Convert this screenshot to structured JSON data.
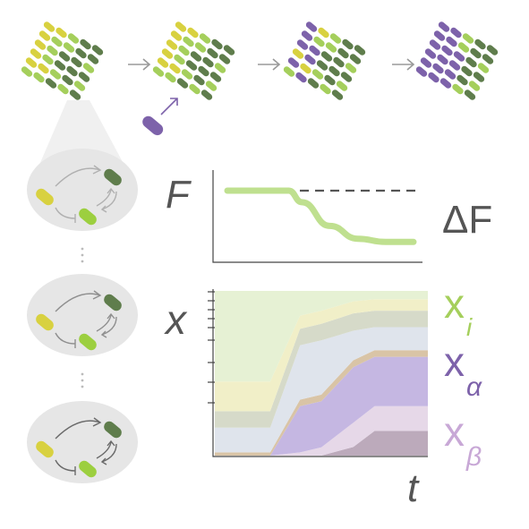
{
  "labels": {
    "fitness": "F",
    "delta_fitness": "ΔF",
    "abundance": "x",
    "time": "t",
    "resident": {
      "base": "x",
      "sub": "i"
    },
    "invader_alpha": {
      "base": "x",
      "sub": "α"
    },
    "invader_beta": {
      "base": "x",
      "sub": "β"
    }
  },
  "colors": {
    "yellow": "#d8d140",
    "light_green": "#a5cf5c",
    "dark_green": "#5f7d4c",
    "purple": "#7d62aa",
    "pale_purple": "#b29ccb",
    "grey_text": "#555555",
    "ellipse": "#e6e6e6",
    "arrow": "#9a9a9a"
  },
  "icons": [
    "right-arrow-icon",
    "invader-arrow-icon",
    "ellipsis-dots-icon"
  ],
  "chart_data": {
    "type": "area",
    "series": [
      {
        "key": "resident_light_green",
        "values": [
          0.55,
          0.55,
          0.55,
          0.15,
          0.12,
          0.06,
          0.05,
          0.05
        ]
      },
      {
        "key": "resident_yellow",
        "values": [
          0.18,
          0.18,
          0.18,
          0.08,
          0.08,
          0.07,
          0.07,
          0.07
        ]
      },
      {
        "key": "resident_dark_green",
        "values": [
          0.1,
          0.1,
          0.1,
          0.1,
          0.1,
          0.1,
          0.1,
          0.1
        ]
      },
      {
        "key": "invader_blue",
        "values": [
          0.15,
          0.15,
          0.15,
          0.33,
          0.33,
          0.17,
          0.14,
          0.14
        ]
      },
      {
        "key": "invader_tan",
        "values": [
          0.02,
          0.02,
          0.02,
          0.04,
          0.04,
          0.04,
          0.04,
          0.04
        ]
      },
      {
        "key": "invader_alpha_purple",
        "values": [
          0.0,
          0.0,
          0.0,
          0.28,
          0.28,
          0.32,
          0.3,
          0.3
        ]
      },
      {
        "key": "invader_beta_pink",
        "values": [
          0.0,
          0.0,
          0.0,
          0.02,
          0.05,
          0.14,
          0.15,
          0.15
        ]
      },
      {
        "key": "invader_beta_dark",
        "values": [
          0.0,
          0.0,
          0.0,
          0.0,
          0.0,
          0.05,
          0.15,
          0.15
        ]
      }
    ],
    "x": [
      0,
      0.26,
      0.26,
      0.4,
      0.5,
      0.65,
      0.75,
      1.0
    ],
    "fitness_curve": {
      "x": [
        0,
        0.33,
        0.4,
        0.55,
        0.7,
        0.85,
        1.0
      ],
      "y": [
        1.0,
        1.0,
        0.82,
        0.45,
        0.25,
        0.2,
        0.2
      ]
    },
    "fitness_reference_level": 1.0
  }
}
